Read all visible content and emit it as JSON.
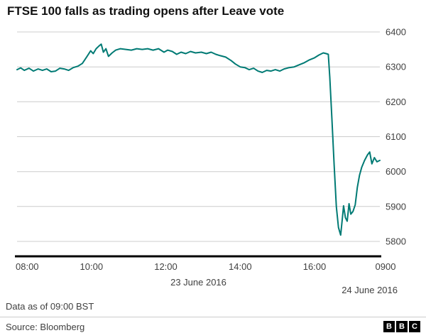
{
  "footer": {
    "data_note": "Data as of 09:00 BST",
    "source": "Source: Bloomberg",
    "logo_letters": [
      "B",
      "B",
      "C"
    ]
  },
  "chart_data": {
    "type": "line",
    "title": "FTSE 100 falls as trading opens after Leave vote",
    "series_name": "FTSE 100",
    "line_color": "#007a74",
    "grid_color": "#cccccc",
    "axis_color": "#000000",
    "text_color": "#404040",
    "ylim": [
      5800,
      6400
    ],
    "yticks": [
      6400,
      6300,
      6200,
      6100,
      6000,
      5900,
      5800
    ],
    "xticks": [
      {
        "pos": 0.0,
        "label": "08:00"
      },
      {
        "pos": 0.205,
        "label": "10:00"
      },
      {
        "pos": 0.41,
        "label": "12:00"
      },
      {
        "pos": 0.615,
        "label": "14:00"
      },
      {
        "pos": 0.82,
        "label": "16:00"
      },
      {
        "pos": 1.0,
        "label": "0900"
      }
    ],
    "date_labels": [
      {
        "pos": 0.5,
        "label": "23 June 2016",
        "align": "middle"
      },
      {
        "pos": 1.0,
        "label": "24 June 2016",
        "align": "end"
      }
    ],
    "points": [
      [
        0.0,
        6292
      ],
      [
        0.01,
        6297
      ],
      [
        0.02,
        6290
      ],
      [
        0.033,
        6296
      ],
      [
        0.045,
        6288
      ],
      [
        0.058,
        6294
      ],
      [
        0.07,
        6290
      ],
      [
        0.082,
        6294
      ],
      [
        0.094,
        6286
      ],
      [
        0.106,
        6288
      ],
      [
        0.118,
        6296
      ],
      [
        0.13,
        6294
      ],
      [
        0.142,
        6290
      ],
      [
        0.155,
        6298
      ],
      [
        0.168,
        6302
      ],
      [
        0.18,
        6310
      ],
      [
        0.193,
        6330
      ],
      [
        0.203,
        6346
      ],
      [
        0.21,
        6338
      ],
      [
        0.218,
        6352
      ],
      [
        0.226,
        6360
      ],
      [
        0.232,
        6365
      ],
      [
        0.238,
        6342
      ],
      [
        0.245,
        6352
      ],
      [
        0.252,
        6330
      ],
      [
        0.262,
        6340
      ],
      [
        0.272,
        6348
      ],
      [
        0.285,
        6352
      ],
      [
        0.3,
        6350
      ],
      [
        0.315,
        6348
      ],
      [
        0.33,
        6352
      ],
      [
        0.345,
        6350
      ],
      [
        0.36,
        6352
      ],
      [
        0.375,
        6348
      ],
      [
        0.39,
        6352
      ],
      [
        0.405,
        6342
      ],
      [
        0.415,
        6348
      ],
      [
        0.428,
        6344
      ],
      [
        0.44,
        6336
      ],
      [
        0.452,
        6342
      ],
      [
        0.465,
        6338
      ],
      [
        0.478,
        6344
      ],
      [
        0.492,
        6340
      ],
      [
        0.508,
        6342
      ],
      [
        0.522,
        6338
      ],
      [
        0.535,
        6342
      ],
      [
        0.548,
        6336
      ],
      [
        0.56,
        6332
      ],
      [
        0.575,
        6328
      ],
      [
        0.59,
        6318
      ],
      [
        0.602,
        6308
      ],
      [
        0.615,
        6300
      ],
      [
        0.628,
        6298
      ],
      [
        0.64,
        6292
      ],
      [
        0.652,
        6296
      ],
      [
        0.664,
        6288
      ],
      [
        0.676,
        6284
      ],
      [
        0.688,
        6290
      ],
      [
        0.7,
        6288
      ],
      [
        0.712,
        6292
      ],
      [
        0.724,
        6288
      ],
      [
        0.736,
        6294
      ],
      [
        0.75,
        6298
      ],
      [
        0.764,
        6300
      ],
      [
        0.778,
        6306
      ],
      [
        0.792,
        6312
      ],
      [
        0.806,
        6320
      ],
      [
        0.82,
        6326
      ],
      [
        0.832,
        6334
      ],
      [
        0.844,
        6340
      ],
      [
        0.852,
        6338
      ],
      [
        0.858,
        6336
      ],
      [
        0.862,
        6270
      ],
      [
        0.868,
        6150
      ],
      [
        0.874,
        6020
      ],
      [
        0.88,
        5900
      ],
      [
        0.886,
        5840
      ],
      [
        0.892,
        5818
      ],
      [
        0.896,
        5860
      ],
      [
        0.9,
        5902
      ],
      [
        0.905,
        5868
      ],
      [
        0.91,
        5858
      ],
      [
        0.915,
        5908
      ],
      [
        0.92,
        5878
      ],
      [
        0.926,
        5886
      ],
      [
        0.932,
        5905
      ],
      [
        0.938,
        5955
      ],
      [
        0.944,
        5990
      ],
      [
        0.95,
        6012
      ],
      [
        0.958,
        6032
      ],
      [
        0.966,
        6048
      ],
      [
        0.972,
        6056
      ],
      [
        0.978,
        6022
      ],
      [
        0.985,
        6040
      ],
      [
        0.992,
        6028
      ],
      [
        1.0,
        6032
      ]
    ]
  }
}
